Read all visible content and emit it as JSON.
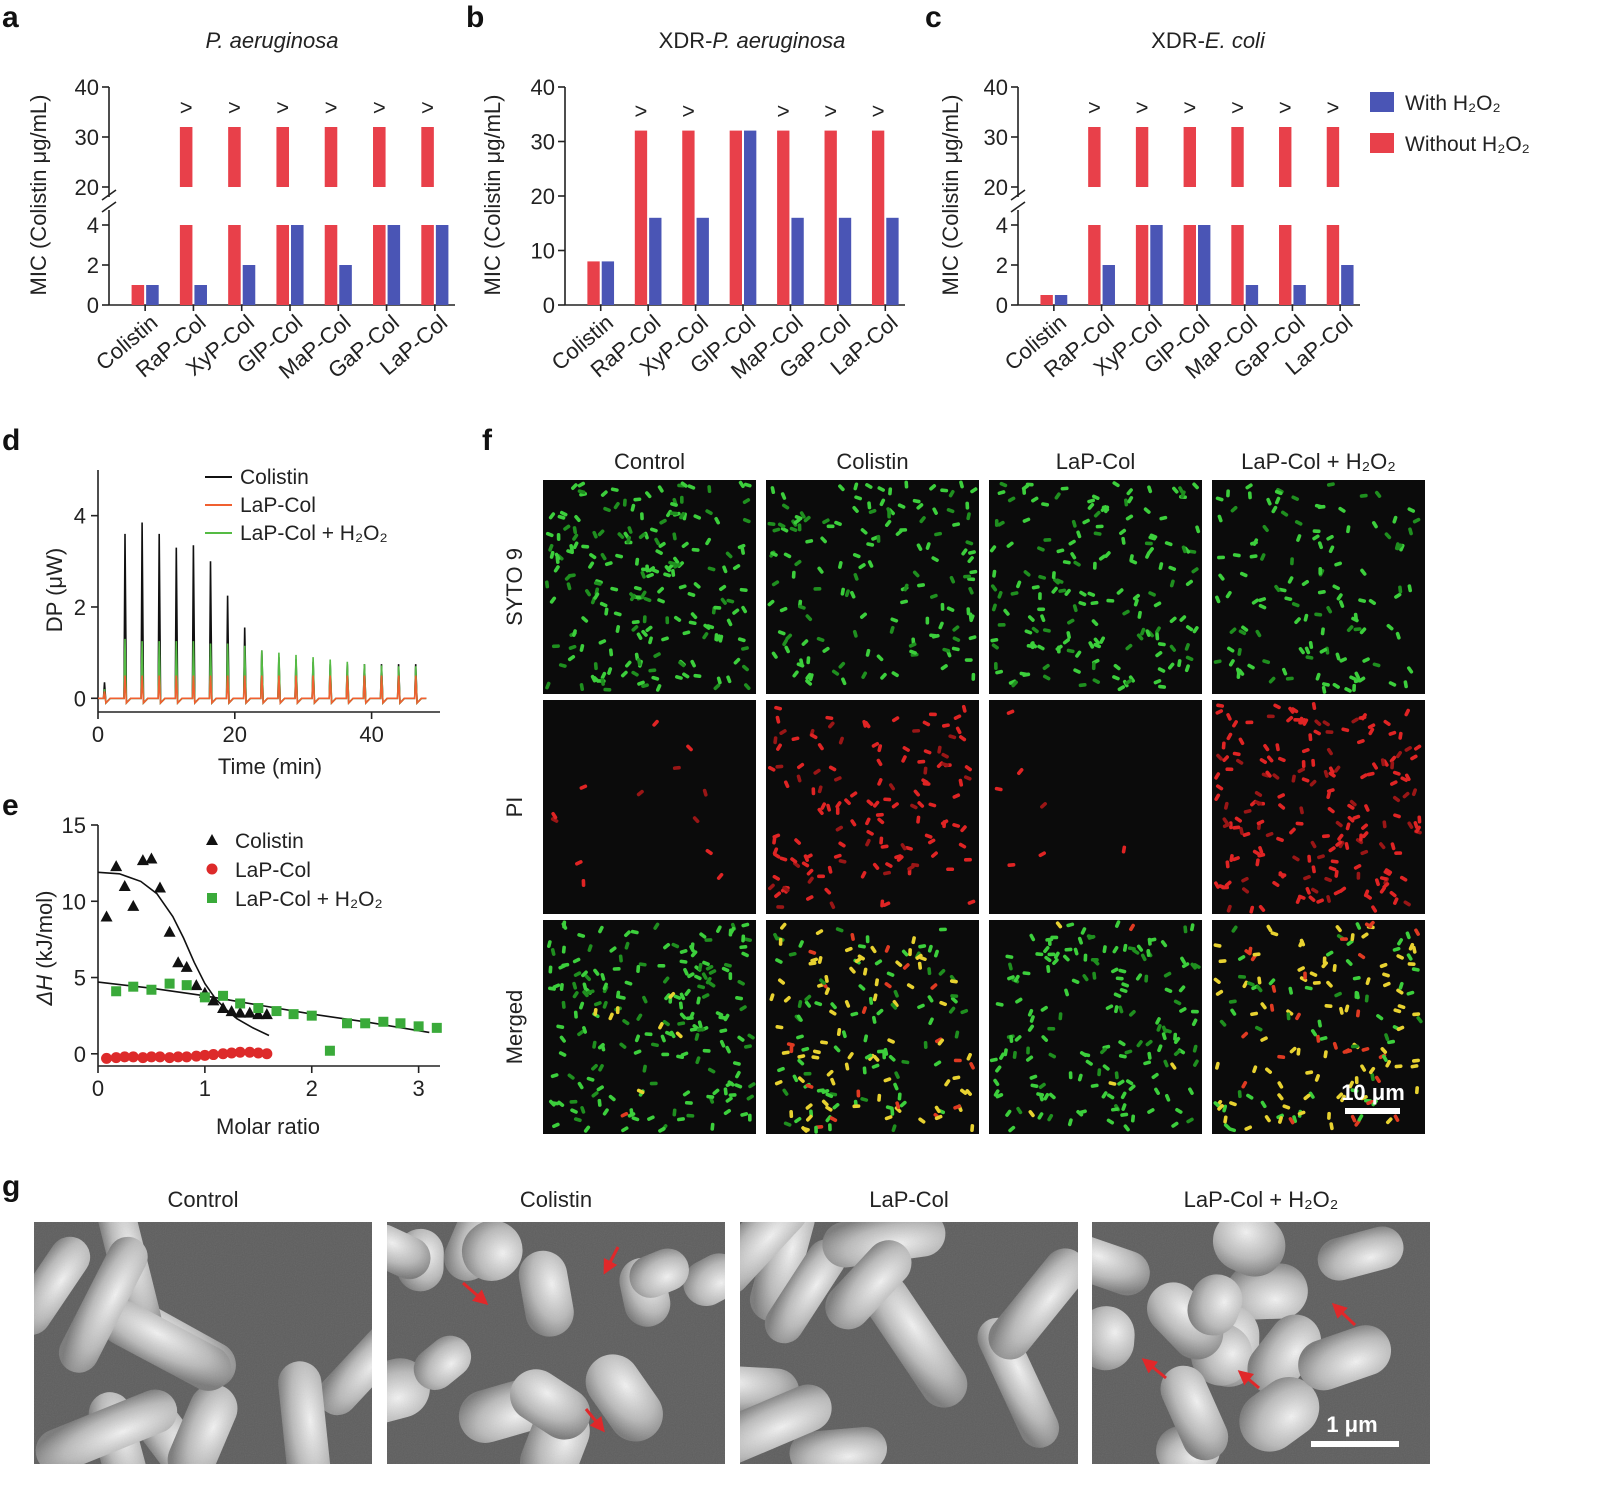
{
  "colors": {
    "with_h2o2": "#4a55b5",
    "without_h2o2": "#e8404a",
    "colistin_line": "#111111",
    "lapcol_line": "#f06030",
    "lapcol_h2o2_line": "#55bb44",
    "colistin_marker": "#111111",
    "lapcol_marker": "#dd2a2a",
    "lapcol_h2o2_marker": "#3aaa3a"
  },
  "panels": {
    "a": "a",
    "b": "b",
    "c": "c",
    "d": "d",
    "e": "e",
    "f": "f",
    "g": "g"
  },
  "mic_legend": {
    "with": "With H₂O₂",
    "without": "Without H₂O₂"
  },
  "gt_symbol": ">",
  "chart_data": [
    {
      "id": "a",
      "type": "bar",
      "title_parts": [
        {
          "text": "P. aeruginosa",
          "italic": true
        }
      ],
      "ylabel": "MIC (Colistin μg/mL)",
      "axis_break": true,
      "lower_ticks": [
        "0",
        "2",
        "4"
      ],
      "upper_ticks": [
        "20",
        "30",
        "40"
      ],
      "categories": [
        "Colistin",
        "RaP-Col",
        "XyP-Col",
        "GlP-Col",
        "MaP-Col",
        "GaP-Col",
        "LaP-Col"
      ],
      "series": [
        {
          "name": "Without H₂O₂",
          "values": [
            1,
            32,
            32,
            32,
            32,
            32,
            32
          ],
          "greater_than": [
            false,
            true,
            true,
            true,
            true,
            true,
            true
          ]
        },
        {
          "name": "With H₂O₂",
          "values": [
            1,
            1,
            2,
            4,
            2,
            4,
            4
          ]
        }
      ]
    },
    {
      "id": "b",
      "type": "bar",
      "title_parts": [
        {
          "text": "XDR-",
          "italic": false
        },
        {
          "text": "P. aeruginosa",
          "italic": true
        }
      ],
      "ylabel": "MIC (Colistin μg/mL)",
      "axis_break": false,
      "ylim": [
        0,
        40
      ],
      "ticks": [
        "0",
        "10",
        "20",
        "30",
        "40"
      ],
      "categories": [
        "Colistin",
        "RaP-Col",
        "XyP-Col",
        "GlP-Col",
        "MaP-Col",
        "GaP-Col",
        "LaP-Col"
      ],
      "series": [
        {
          "name": "Without H₂O₂",
          "values": [
            8,
            32,
            32,
            32,
            32,
            32,
            32
          ],
          "greater_than": [
            false,
            true,
            true,
            false,
            true,
            true,
            true
          ]
        },
        {
          "name": "With H₂O₂",
          "values": [
            8,
            16,
            16,
            32,
            16,
            16,
            16
          ]
        }
      ]
    },
    {
      "id": "c",
      "type": "bar",
      "title_parts": [
        {
          "text": "XDR-",
          "italic": false
        },
        {
          "text": "E. coli",
          "italic": true
        }
      ],
      "ylabel": "MIC (Colistin μg/mL)",
      "axis_break": true,
      "lower_ticks": [
        "0",
        "2",
        "4"
      ],
      "upper_ticks": [
        "20",
        "30",
        "40"
      ],
      "categories": [
        "Colistin",
        "RaP-Col",
        "XyP-Col",
        "GlP-Col",
        "MaP-Col",
        "GaP-Col",
        "LaP-Col"
      ],
      "series": [
        {
          "name": "Without H₂O₂",
          "values": [
            0.5,
            32,
            32,
            32,
            32,
            32,
            32
          ],
          "greater_than": [
            false,
            true,
            true,
            true,
            true,
            true,
            true
          ]
        },
        {
          "name": "With H₂O₂",
          "values": [
            0.5,
            2,
            4,
            4,
            1,
            1,
            2
          ]
        }
      ]
    },
    {
      "id": "d",
      "type": "line",
      "xlabel": "Time (min)",
      "ylabel": "DP (μW)",
      "xlim": [
        0,
        50
      ],
      "ylim": [
        -0.3,
        5
      ],
      "xticks": [
        "0",
        "20",
        "40"
      ],
      "yticks": [
        "0",
        "2",
        "4"
      ],
      "injection_times": [
        0.8,
        3.8,
        6.3,
        8.8,
        11.3,
        13.8,
        16.3,
        18.8,
        21.3,
        23.8,
        26.3,
        28.8,
        31.3,
        33.8,
        36.3,
        38.8,
        41.3,
        43.8,
        46.3
      ],
      "series": [
        {
          "name": "Colistin",
          "peaks": [
            0.35,
            3.6,
            3.85,
            3.6,
            3.3,
            3.35,
            3.0,
            2.25,
            1.55,
            1.05,
            0.9,
            0.85,
            0.8,
            0.75,
            0.75,
            0.75,
            0.75,
            0.75,
            0.75
          ]
        },
        {
          "name": "LaP-Col",
          "peaks": [
            0.15,
            0.5,
            0.5,
            0.5,
            0.5,
            0.5,
            0.5,
            0.5,
            0.5,
            0.5,
            0.5,
            0.5,
            0.5,
            0.5,
            0.5,
            0.5,
            0.5,
            0.5,
            0.5
          ]
        },
        {
          "name": "LaP-Col + H₂O₂",
          "peaks": [
            0.2,
            1.3,
            1.25,
            1.25,
            1.25,
            1.25,
            1.2,
            1.2,
            1.15,
            1.05,
            1.0,
            0.95,
            0.9,
            0.85,
            0.8,
            0.75,
            0.72,
            0.7,
            0.7
          ]
        }
      ]
    },
    {
      "id": "e",
      "type": "scatter",
      "xlabel": "Molar ratio",
      "ylabel_italic": "ΔH",
      "ylabel_rest": " (kJ/mol)",
      "xlim": [
        0,
        3.2
      ],
      "ylim": [
        -0.8,
        15
      ],
      "xticks": [
        "0",
        "1",
        "2",
        "3"
      ],
      "yticks": [
        "0",
        "5",
        "10",
        "15"
      ],
      "series": [
        {
          "name": "Colistin",
          "marker": "triangle",
          "x": [
            0.08,
            0.17,
            0.25,
            0.33,
            0.42,
            0.5,
            0.58,
            0.67,
            0.75,
            0.83,
            0.92,
            1.0,
            1.08,
            1.17,
            1.25,
            1.33,
            1.42,
            1.5,
            1.58
          ],
          "y": [
            9.0,
            12.3,
            11.0,
            9.7,
            12.7,
            12.8,
            10.9,
            8.0,
            6.0,
            5.7,
            4.5,
            4.0,
            3.5,
            3.0,
            2.8,
            2.7,
            2.7,
            2.6,
            2.6
          ],
          "fit": {
            "x": [
              0,
              0.2,
              0.4,
              0.55,
              0.7,
              0.8,
              0.9,
              1.0,
              1.1,
              1.2,
              1.3,
              1.45,
              1.6
            ],
            "y": [
              11.9,
              11.8,
              11.3,
              10.5,
              9.0,
              7.6,
              6.0,
              4.6,
              3.6,
              2.9,
              2.3,
              1.7,
              1.2
            ]
          }
        },
        {
          "name": "LaP-Col",
          "marker": "circle",
          "x": [
            0.08,
            0.17,
            0.25,
            0.33,
            0.42,
            0.5,
            0.58,
            0.67,
            0.75,
            0.83,
            0.92,
            1.0,
            1.08,
            1.17,
            1.25,
            1.33,
            1.42,
            1.5,
            1.58
          ],
          "y": [
            -0.3,
            -0.25,
            -0.2,
            -0.2,
            -0.25,
            -0.2,
            -0.2,
            -0.25,
            -0.2,
            -0.2,
            -0.15,
            -0.1,
            -0.05,
            0.0,
            0.05,
            0.1,
            0.1,
            0.05,
            0.0
          ]
        },
        {
          "name": "LaP-Col + H₂O₂",
          "marker": "square",
          "x": [
            0.17,
            0.33,
            0.5,
            0.67,
            0.83,
            1.0,
            1.17,
            1.33,
            1.5,
            1.67,
            1.83,
            2.0,
            2.17,
            2.33,
            2.5,
            2.67,
            2.83,
            3.0,
            3.17
          ],
          "y": [
            4.1,
            4.4,
            4.2,
            4.6,
            4.5,
            3.7,
            3.8,
            3.3,
            3.0,
            2.8,
            2.6,
            2.5,
            0.2,
            2.0,
            2.0,
            2.1,
            2.0,
            1.8,
            1.7
          ],
          "fit": {
            "x": [
              0,
              0.5,
              1.0,
              1.5,
              2.0,
              2.5,
              3.1
            ],
            "y": [
              4.7,
              4.3,
              3.8,
              3.2,
              2.6,
              2.1,
              1.4
            ]
          }
        }
      ]
    }
  ],
  "micro_f": {
    "columns": [
      "Control",
      "Colistin",
      "LaP-Col",
      "LaP-Col + H₂O₂"
    ],
    "rows": [
      "SYTO 9",
      "PI",
      "Merged"
    ],
    "scale_label": "10 μm",
    "density": [
      [
        0.9,
        0.65,
        0.75,
        0.55
      ],
      [
        0.06,
        0.6,
        0.03,
        0.85
      ],
      [
        0.9,
        0.8,
        0.75,
        0.75
      ]
    ]
  },
  "sem_g": {
    "columns": [
      "Control",
      "Colistin",
      "LaP-Col",
      "LaP-Col + H₂O₂"
    ],
    "scale_label": "1 μm"
  }
}
